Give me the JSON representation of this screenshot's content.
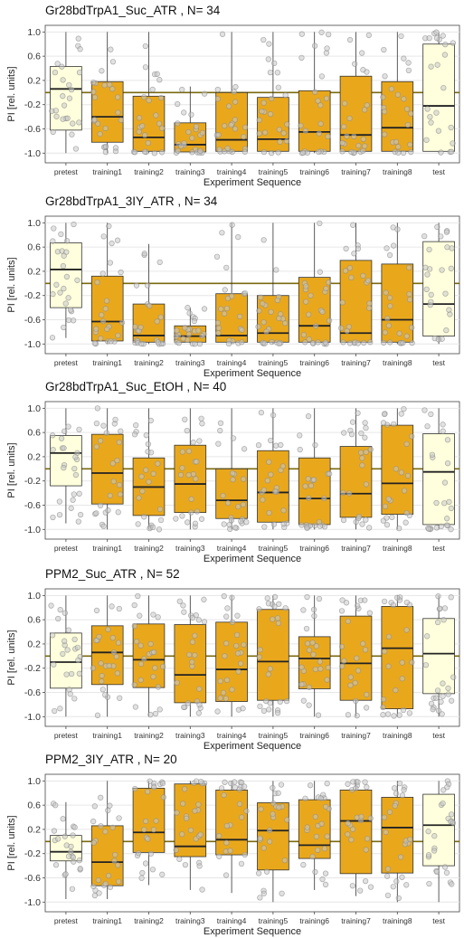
{
  "colors": {
    "pre_test_fill": "#ffffdd",
    "training_fill": "#e9a81c",
    "box_stroke": "#333333",
    "refline": "#7a6a10",
    "grid": "#e6e6e6",
    "point_fill": "#c8c8c8",
    "point_stroke": "#8a8a8a"
  },
  "chart_data": [
    {
      "type": "box",
      "title": "Gr28bdTrpA1_Suc_ATR , N= 34",
      "xlabel": "Experiment Sequence",
      "ylabel": "PI [rel. units]",
      "ylim": [
        -1.1,
        1.05
      ],
      "yticks": [
        "1.0",
        "0.6",
        "0.2",
        "-0.2",
        "-0.6",
        "-1.0"
      ],
      "categories": [
        "pretest",
        "training1",
        "training2",
        "training3",
        "training4",
        "training5",
        "training6",
        "training7",
        "training8",
        "test"
      ],
      "refline": 0.0,
      "boxes": [
        {
          "q1": -0.62,
          "median": 0.06,
          "q3": 0.43,
          "min": -1.0,
          "max": 1.0
        },
        {
          "q1": -0.82,
          "median": -0.4,
          "q3": 0.18,
          "min": -1.0,
          "max": 1.0
        },
        {
          "q1": -0.97,
          "median": -0.74,
          "q3": -0.06,
          "min": -1.0,
          "max": 1.0
        },
        {
          "q1": -0.98,
          "median": -0.86,
          "q3": -0.5,
          "min": -1.0,
          "max": 0.1
        },
        {
          "q1": -0.97,
          "median": -0.78,
          "q3": 0.0,
          "min": -1.0,
          "max": 1.0
        },
        {
          "q1": -0.97,
          "median": -0.77,
          "q3": -0.08,
          "min": -1.0,
          "max": 1.0
        },
        {
          "q1": -0.97,
          "median": -0.65,
          "q3": 0.03,
          "min": -1.0,
          "max": 1.0
        },
        {
          "q1": -0.97,
          "median": -0.7,
          "q3": 0.27,
          "min": -1.0,
          "max": 1.0
        },
        {
          "q1": -0.97,
          "median": -0.58,
          "q3": 0.18,
          "min": -1.0,
          "max": 1.0
        },
        {
          "q1": -0.97,
          "median": -0.22,
          "q3": 0.8,
          "min": -1.0,
          "max": 1.0
        }
      ]
    },
    {
      "type": "box",
      "title": "Gr28bdTrpA1_3IY_ATR , N= 34",
      "xlabel": "Experiment Sequence",
      "ylabel": "PI [rel. units]",
      "ylim": [
        -1.1,
        1.05
      ],
      "yticks": [
        "1.0",
        "0.6",
        "0.2",
        "-0.2",
        "-0.6",
        "-1.0"
      ],
      "categories": [
        "pretest",
        "training1",
        "training2",
        "training3",
        "training4",
        "training5",
        "training6",
        "training7",
        "training8",
        "test"
      ],
      "refline": 0.0,
      "boxes": [
        {
          "q1": -0.4,
          "median": 0.23,
          "q3": 0.67,
          "min": -0.9,
          "max": 1.0
        },
        {
          "q1": -0.95,
          "median": -0.63,
          "q3": 0.12,
          "min": -1.0,
          "max": 1.0
        },
        {
          "q1": -0.97,
          "median": -0.86,
          "q3": -0.34,
          "min": -1.0,
          "max": 0.65
        },
        {
          "q1": -0.97,
          "median": -0.87,
          "q3": -0.7,
          "min": -1.0,
          "max": -0.4
        },
        {
          "q1": -0.97,
          "median": -0.86,
          "q3": -0.17,
          "min": -1.0,
          "max": 1.0
        },
        {
          "q1": -0.97,
          "median": -0.82,
          "q3": -0.2,
          "min": -1.0,
          "max": 1.0
        },
        {
          "q1": -0.97,
          "median": -0.7,
          "q3": 0.1,
          "min": -1.0,
          "max": 1.0
        },
        {
          "q1": -0.97,
          "median": -0.82,
          "q3": 0.38,
          "min": -1.0,
          "max": 1.0
        },
        {
          "q1": -0.97,
          "median": -0.6,
          "q3": 0.32,
          "min": -1.0,
          "max": 1.0
        },
        {
          "q1": -0.87,
          "median": -0.34,
          "q3": 0.69,
          "min": -1.0,
          "max": 1.0
        }
      ]
    },
    {
      "type": "box",
      "title": "Gr28bdTrpA1_Suc_EtOH , N= 40",
      "xlabel": "Experiment Sequence",
      "ylabel": "PI [rel. units]",
      "ylim": [
        -1.1,
        1.05
      ],
      "yticks": [
        "1.0",
        "0.6",
        "0.2",
        "-0.2",
        "-0.6",
        "-1.0"
      ],
      "categories": [
        "pretest",
        "training1",
        "training2",
        "training3",
        "training4",
        "training5",
        "training6",
        "training7",
        "training8",
        "test"
      ],
      "refline": 0.0,
      "boxes": [
        {
          "q1": -0.28,
          "median": 0.26,
          "q3": 0.55,
          "min": -0.9,
          "max": 1.0
        },
        {
          "q1": -0.58,
          "median": -0.07,
          "q3": 0.57,
          "min": -1.0,
          "max": 1.0
        },
        {
          "q1": -0.77,
          "median": -0.3,
          "q3": 0.18,
          "min": -1.0,
          "max": 1.0
        },
        {
          "q1": -0.72,
          "median": -0.25,
          "q3": 0.39,
          "min": -1.0,
          "max": 1.0
        },
        {
          "q1": -0.82,
          "median": -0.52,
          "q3": 0.0,
          "min": -1.0,
          "max": 1.0
        },
        {
          "q1": -0.88,
          "median": -0.39,
          "q3": 0.3,
          "min": -1.0,
          "max": 1.0
        },
        {
          "q1": -0.92,
          "median": -0.49,
          "q3": 0.18,
          "min": -1.0,
          "max": 1.0
        },
        {
          "q1": -0.8,
          "median": -0.41,
          "q3": 0.37,
          "min": -1.0,
          "max": 1.0
        },
        {
          "q1": -0.75,
          "median": -0.24,
          "q3": 0.72,
          "min": -1.0,
          "max": 1.0
        },
        {
          "q1": -0.92,
          "median": -0.05,
          "q3": 0.58,
          "min": -1.0,
          "max": 1.0
        }
      ]
    },
    {
      "type": "box",
      "title": "PPM2_Suc_ATR , N= 52",
      "xlabel": "Experiment Sequence",
      "ylabel": "PI [rel. units]",
      "ylim": [
        -1.1,
        1.05
      ],
      "yticks": [
        "1.0",
        "0.6",
        "0.2",
        "-0.2",
        "-0.6",
        "-1.0"
      ],
      "categories": [
        "pretest",
        "training1",
        "training2",
        "training3",
        "training4",
        "training5",
        "training6",
        "training7",
        "training8",
        "test"
      ],
      "refline": 0.0,
      "boxes": [
        {
          "q1": -0.53,
          "median": -0.1,
          "q3": 0.38,
          "min": -1.0,
          "max": 1.0
        },
        {
          "q1": -0.47,
          "median": 0.06,
          "q3": 0.5,
          "min": -1.0,
          "max": 1.0
        },
        {
          "q1": -0.52,
          "median": -0.06,
          "q3": 0.53,
          "min": -1.0,
          "max": 1.0
        },
        {
          "q1": -0.77,
          "median": -0.31,
          "q3": 0.52,
          "min": -1.0,
          "max": 1.0
        },
        {
          "q1": -0.75,
          "median": -0.22,
          "q3": 0.56,
          "min": -1.0,
          "max": 1.0
        },
        {
          "q1": -0.73,
          "median": -0.09,
          "q3": 0.77,
          "min": -1.0,
          "max": 1.0
        },
        {
          "q1": -0.54,
          "median": -0.04,
          "q3": 0.32,
          "min": -1.0,
          "max": 1.0
        },
        {
          "q1": -0.73,
          "median": -0.12,
          "q3": 0.66,
          "min": -1.0,
          "max": 1.0
        },
        {
          "q1": -0.87,
          "median": 0.13,
          "q3": 0.82,
          "min": -1.0,
          "max": 1.0
        },
        {
          "q1": -0.62,
          "median": 0.04,
          "q3": 0.62,
          "min": -1.0,
          "max": 1.0
        }
      ]
    },
    {
      "type": "box",
      "title": "PPM2_3IY_ATR , N= 20",
      "xlabel": "Experiment Sequence",
      "ylabel": "PI [rel. units]",
      "ylim": [
        -1.1,
        1.05
      ],
      "yticks": [
        "1.0",
        "0.6",
        "0.2",
        "-0.2",
        "-0.6",
        "-1.0"
      ],
      "categories": [
        "pretest",
        "training1",
        "training2",
        "training3",
        "training4",
        "training5",
        "training6",
        "training7",
        "training8",
        "test"
      ],
      "refline": 0.0,
      "boxes": [
        {
          "q1": -0.32,
          "median": -0.17,
          "q3": 0.1,
          "min": -0.95,
          "max": 0.65
        },
        {
          "q1": -0.73,
          "median": -0.34,
          "q3": 0.26,
          "min": -0.95,
          "max": 1.0
        },
        {
          "q1": -0.18,
          "median": 0.15,
          "q3": 0.88,
          "min": -0.72,
          "max": 1.0
        },
        {
          "q1": -0.25,
          "median": -0.08,
          "q3": 0.95,
          "min": -0.8,
          "max": 1.0
        },
        {
          "q1": -0.22,
          "median": 0.03,
          "q3": 0.85,
          "min": -0.85,
          "max": 1.0
        },
        {
          "q1": -0.47,
          "median": 0.18,
          "q3": 0.64,
          "min": -1.0,
          "max": 1.0
        },
        {
          "q1": -0.28,
          "median": -0.06,
          "q3": 0.69,
          "min": -0.8,
          "max": 1.0
        },
        {
          "q1": -0.53,
          "median": 0.34,
          "q3": 0.85,
          "min": -0.9,
          "max": 1.0
        },
        {
          "q1": -0.52,
          "median": 0.23,
          "q3": 0.73,
          "min": -1.0,
          "max": 1.0
        },
        {
          "q1": -0.4,
          "median": 0.27,
          "q3": 0.78,
          "min": -1.0,
          "max": 1.0
        }
      ]
    }
  ]
}
